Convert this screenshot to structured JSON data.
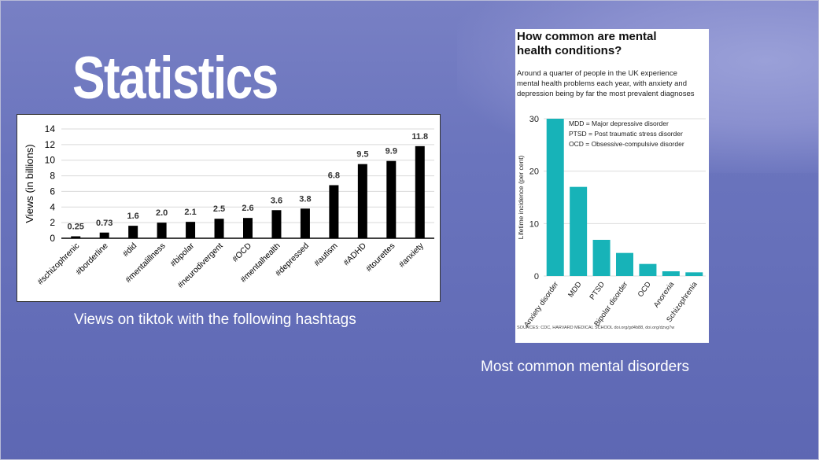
{
  "slide": {
    "title": "Statistics",
    "caption_left": "Views on tiktok with the following hashtags",
    "caption_right": "Most common mental disorders"
  },
  "chart_data": [
    {
      "type": "bar",
      "title": "",
      "xlabel": "",
      "ylabel": "Views (in billions)",
      "ylim": [
        0,
        14
      ],
      "yticks": [
        0,
        2,
        4,
        6,
        8,
        10,
        12,
        14
      ],
      "grid": true,
      "categories": [
        "#schizophrenic",
        "#borderline",
        "#did",
        "#mentalillness",
        "#bipolar",
        "#neurodivergent",
        "#OCD",
        "#mentalhealth",
        "#depressed",
        "#autism",
        "#ADHD",
        "#tourettes",
        "#anxiety"
      ],
      "values": [
        0.25,
        0.73,
        1.6,
        2.0,
        2.1,
        2.5,
        2.6,
        3.6,
        3.8,
        6.8,
        9.5,
        9.9,
        11.8
      ],
      "value_labels": [
        "0.25",
        "0.73",
        "1.6",
        "2.0",
        "2.1",
        "2.5",
        "2.6",
        "3.6",
        "3.8",
        "6.8",
        "9.5",
        "9.9",
        "11.8"
      ],
      "bar_color": "#000000"
    },
    {
      "type": "bar",
      "title": "How common are mental health conditions?",
      "subtitle": "Around a quarter of people in the UK experience mental health problems each year, with anxiety and depression being by far the most prevalent diagnoses",
      "xlabel": "",
      "ylabel": "Lifetime incidence (per cent)",
      "ylim": [
        0,
        30
      ],
      "yticks": [
        0,
        10,
        20,
        30
      ],
      "grid": true,
      "categories": [
        "Anxiety disorder",
        "MDD",
        "PTSD",
        "Bipolar disorder",
        "OCD",
        "Anorexia",
        "Schizophrenia"
      ],
      "values": [
        30,
        17,
        6.9,
        4.4,
        2.3,
        0.9,
        0.7
      ],
      "bar_color": "#17b3b8",
      "annotations": [
        "MDD = Major depressive disorder",
        "PTSD = Post traumatic stress disorder",
        "OCD = Obsessive-compulsive disorder"
      ],
      "source": "SOURCES: CDC, HARVARD MEDICAL SCHOOL doi.org/gd4b88, doi.org/dzvg7w"
    }
  ]
}
